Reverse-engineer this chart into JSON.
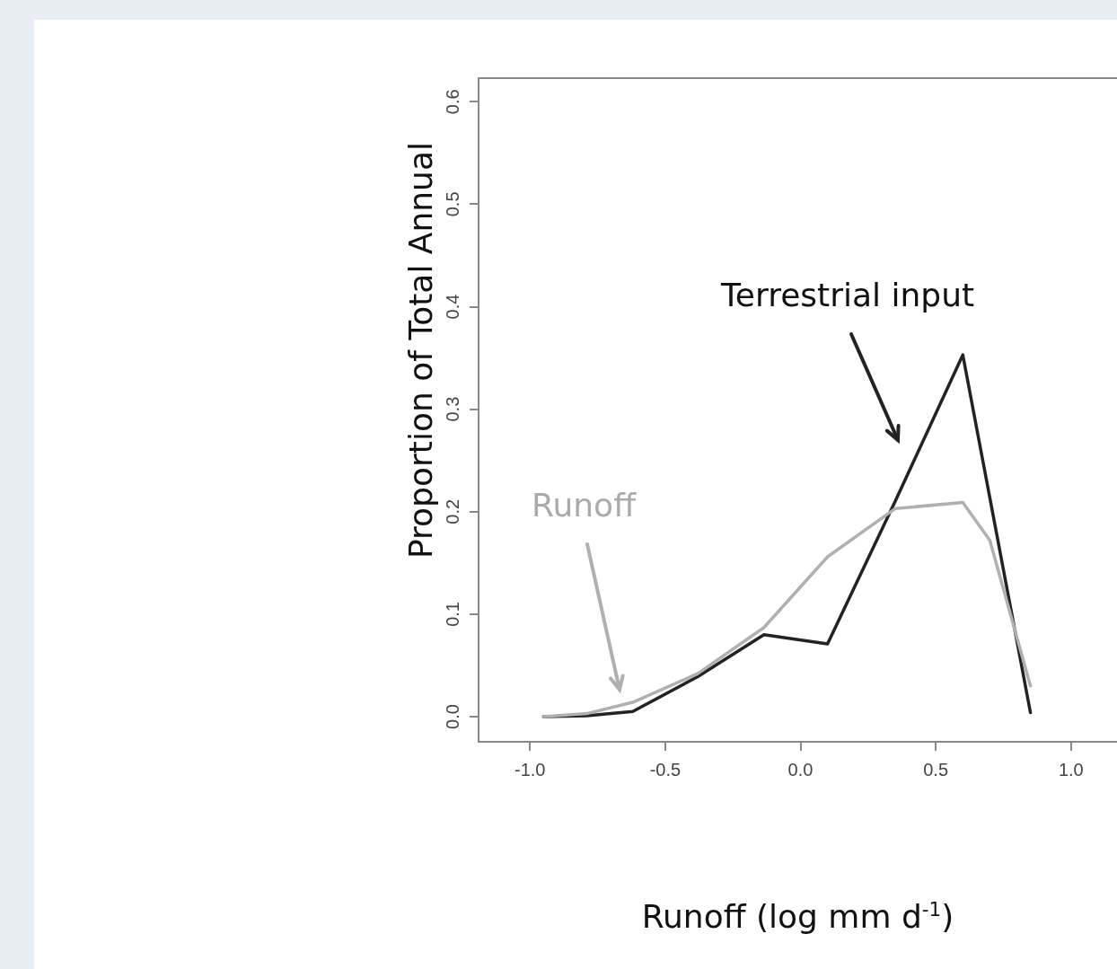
{
  "chart_data": {
    "type": "line",
    "xlabel": "Runoff (log mm d$^{-1}$)",
    "ylabel": "Proportion of Total Annual",
    "xlim": [
      -1.19,
      1.17
    ],
    "ylim": [
      -0.0245,
      0.623
    ],
    "xticks": [
      {
        "value": -1,
        "label": "-1.0"
      },
      {
        "value": -0.5,
        "label": "-0.5"
      },
      {
        "value": 0,
        "label": "0.0"
      },
      {
        "value": 0.5,
        "label": "0.5"
      },
      {
        "value": 1,
        "label": "1.0"
      }
    ],
    "yticks": [
      {
        "value": 0,
        "label": "0.0"
      },
      {
        "value": 0.1,
        "label": "0.1"
      },
      {
        "value": 0.2,
        "label": "0.2"
      },
      {
        "value": 0.3,
        "label": "0.3"
      },
      {
        "value": 0.4,
        "label": "0.4"
      },
      {
        "value": 0.5,
        "label": "0.5"
      },
      {
        "value": 0.6,
        "label": "0.6"
      }
    ],
    "series": [
      {
        "color": "#b0b0b0",
        "x": [
          -0.95,
          -0.79,
          -0.62,
          -0.38,
          -0.135,
          0.1,
          0.35,
          0.6,
          0.7,
          0.85
        ],
        "values": [
          0,
          0.003,
          0.014,
          0.042,
          0.087,
          0.156,
          0.203,
          0.209,
          0.172,
          0.03
        ]
      },
      {
        "color": "#222222",
        "x": [
          -0.95,
          -0.79,
          -0.62,
          -0.38,
          -0.135,
          0.1,
          0.35,
          0.6,
          0.85
        ],
        "values": [
          0,
          0.001,
          0.005,
          0.039,
          0.08,
          0.071,
          0.21,
          0.353,
          0.004
        ]
      }
    ],
    "annotations": [
      "Runoff",
      "Terrestrial input"
    ],
    "grid": false,
    "legend": false,
    "marker": "none",
    "line_style": "solid"
  }
}
